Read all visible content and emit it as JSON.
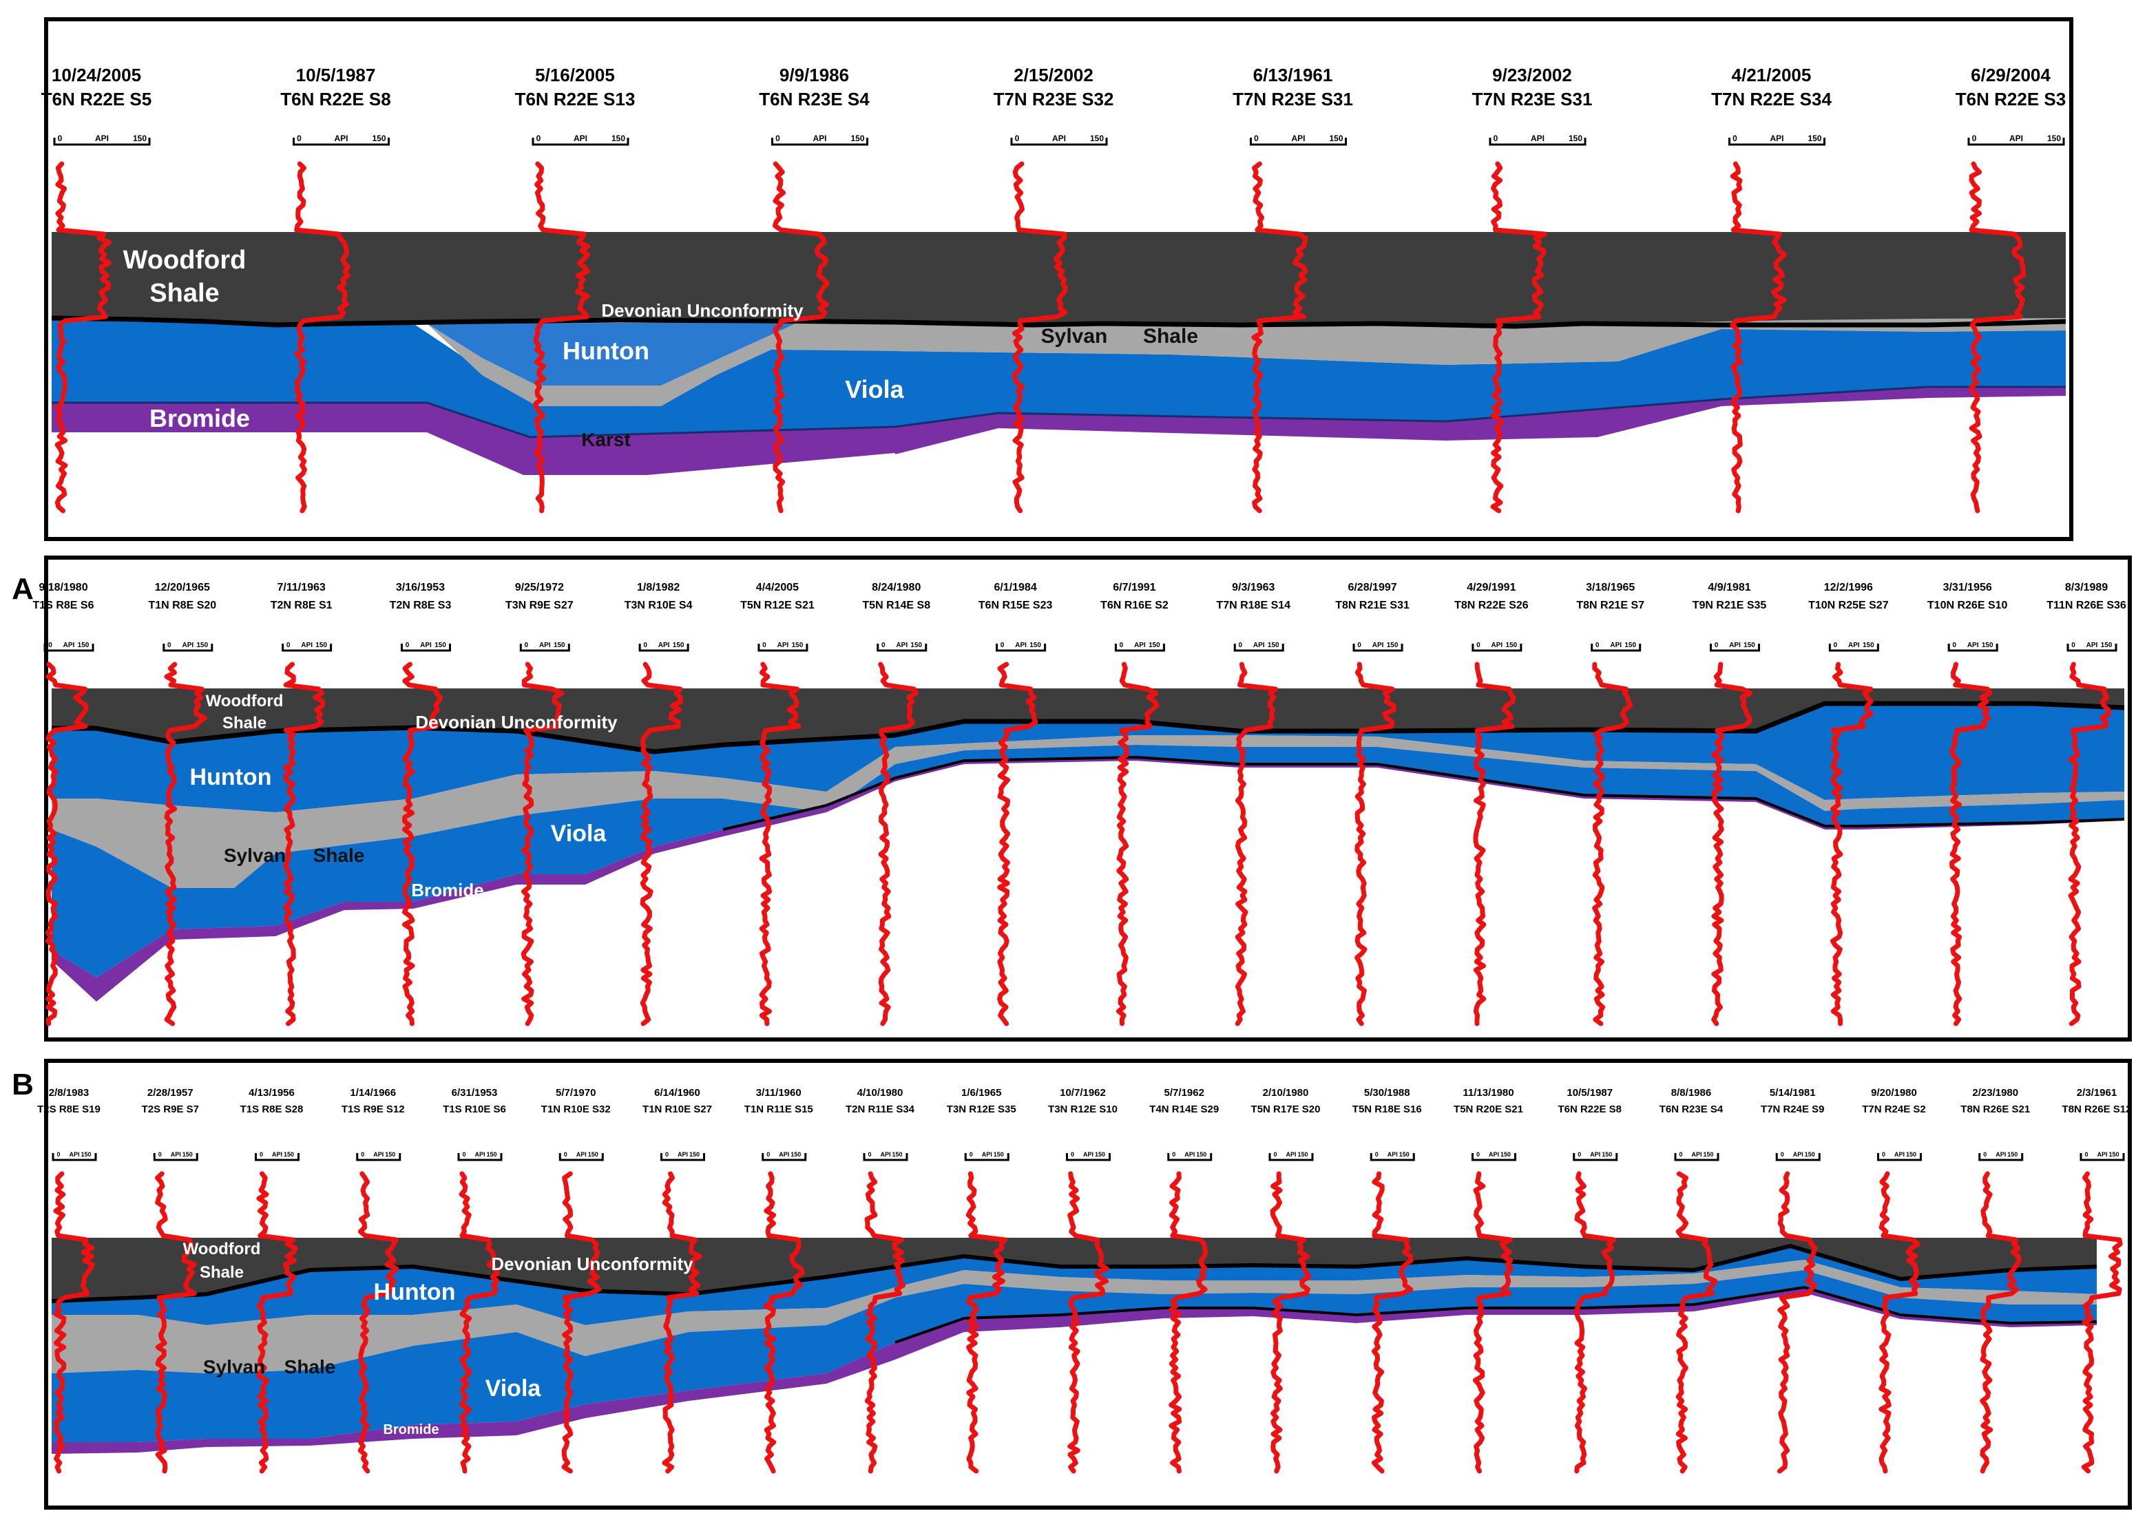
{
  "figure_labels": {
    "a": "A",
    "b": "B"
  },
  "colors": {
    "woodford": "#3d3d3d",
    "hunton": "#0b6ecb",
    "hunton_light": "#2a7ad2",
    "sylvan": "#a7a7a7",
    "viola": "#0b6ecb",
    "bromide": "#7b2fa5",
    "log": "#ee1111"
  },
  "scale": {
    "min": "0",
    "unit": "API",
    "max": "150"
  },
  "panels": [
    {
      "id": "top",
      "wells": [
        {
          "date": "10/24/2005",
          "loc": "T6N R22E S5"
        },
        {
          "date": "10/5/1987",
          "loc": "T6N R22E S8"
        },
        {
          "date": "5/16/2005",
          "loc": "T6N R22E S13"
        },
        {
          "date": "9/9/1986",
          "loc": "T6N R23E S4"
        },
        {
          "date": "2/15/2002",
          "loc": "T7N R23E S32"
        },
        {
          "date": "6/13/1961",
          "loc": "T7N R23E S31"
        },
        {
          "date": "9/23/2002",
          "loc": "T7N R23E S31"
        },
        {
          "date": "4/21/2005",
          "loc": "T7N R22E S34"
        },
        {
          "date": "6/29/2004",
          "loc": "T6N R22E S3"
        }
      ],
      "labels": {
        "woodford1": "Woodford",
        "woodford2": "Shale",
        "unconformity": "Devonian Unconformity",
        "hunton": "Hunton",
        "sylvan": "Sylvan",
        "shale": "Shale",
        "viola": "Viola",
        "bromide": "Bromide",
        "karst": "Karst"
      }
    },
    {
      "id": "A",
      "wells": [
        {
          "date": "9/18/1980",
          "loc": "T1S R8E S6"
        },
        {
          "date": "12/20/1965",
          "loc": "T1N R8E S20"
        },
        {
          "date": "7/11/1963",
          "loc": "T2N R8E S1"
        },
        {
          "date": "3/16/1953",
          "loc": "T2N R8E S3"
        },
        {
          "date": "9/25/1972",
          "loc": "T3N R9E S27"
        },
        {
          "date": "1/8/1982",
          "loc": "T3N R10E S4"
        },
        {
          "date": "4/4/2005",
          "loc": "T5N R12E S21"
        },
        {
          "date": "8/24/1980",
          "loc": "T5N R14E S8"
        },
        {
          "date": "6/1/1984",
          "loc": "T6N R15E S23"
        },
        {
          "date": "6/7/1991",
          "loc": "T6N R16E S2"
        },
        {
          "date": "9/3/1963",
          "loc": "T7N R18E S14"
        },
        {
          "date": "6/28/1997",
          "loc": "T8N R21E S31"
        },
        {
          "date": "4/29/1991",
          "loc": "T8N R22E S26"
        },
        {
          "date": "3/18/1965",
          "loc": "T8N R21E S7"
        },
        {
          "date": "4/9/1981",
          "loc": "T9N R21E S35"
        },
        {
          "date": "12/2/1996",
          "loc": "T10N R25E S27"
        },
        {
          "date": "3/31/1956",
          "loc": "T10N R26E S10"
        },
        {
          "date": "8/3/1989",
          "loc": "T11N R26E S36"
        }
      ],
      "labels": {
        "woodford1": "Woodford",
        "woodford2": "Shale",
        "unconformity": "Devonian Unconformity",
        "hunton": "Hunton",
        "sylvan": "Sylvan",
        "shale": "Shale",
        "viola": "Viola",
        "bromide": "Bromide"
      }
    },
    {
      "id": "B",
      "wells": [
        {
          "date": "2/8/1983",
          "loc": "T2S R8E S19"
        },
        {
          "date": "2/28/1957",
          "loc": "T2S R9E S7"
        },
        {
          "date": "4/13/1956",
          "loc": "T1S R8E S28"
        },
        {
          "date": "1/14/1966",
          "loc": "T1S R9E S12"
        },
        {
          "date": "6/31/1953",
          "loc": "T1S R10E S6"
        },
        {
          "date": "5/7/1970",
          "loc": "T1N R10E S32"
        },
        {
          "date": "6/14/1960",
          "loc": "T1N R10E S27"
        },
        {
          "date": "3/11/1960",
          "loc": "T1N R11E S15"
        },
        {
          "date": "4/10/1980",
          "loc": "T2N R11E S34"
        },
        {
          "date": "1/6/1965",
          "loc": "T3N R12E S35"
        },
        {
          "date": "10/7/1962",
          "loc": "T3N R12E S10"
        },
        {
          "date": "5/7/1962",
          "loc": "T4N R14E S29"
        },
        {
          "date": "2/10/1980",
          "loc": "T5N R17E S20"
        },
        {
          "date": "5/30/1988",
          "loc": "T5N R18E S16"
        },
        {
          "date": "11/13/1980",
          "loc": "T5N R20E S21"
        },
        {
          "date": "10/5/1987",
          "loc": "T6N R22E S8"
        },
        {
          "date": "8/8/1986",
          "loc": "T6N R23E S4"
        },
        {
          "date": "5/14/1981",
          "loc": "T7N R24E S9"
        },
        {
          "date": "9/20/1980",
          "loc": "T7N R24E S2"
        },
        {
          "date": "2/23/1980",
          "loc": "T8N R26E S21"
        },
        {
          "date": "2/3/1961",
          "loc": "T8N R26E S12"
        }
      ],
      "labels": {
        "woodford1": "Woodford",
        "woodford2": "Shale",
        "unconformity": "Devonian Unconformity",
        "hunton": "Hunton",
        "sylvan": "Sylvan",
        "shale": "Shale",
        "viola": "Viola",
        "bromide": "Bromide"
      }
    }
  ]
}
